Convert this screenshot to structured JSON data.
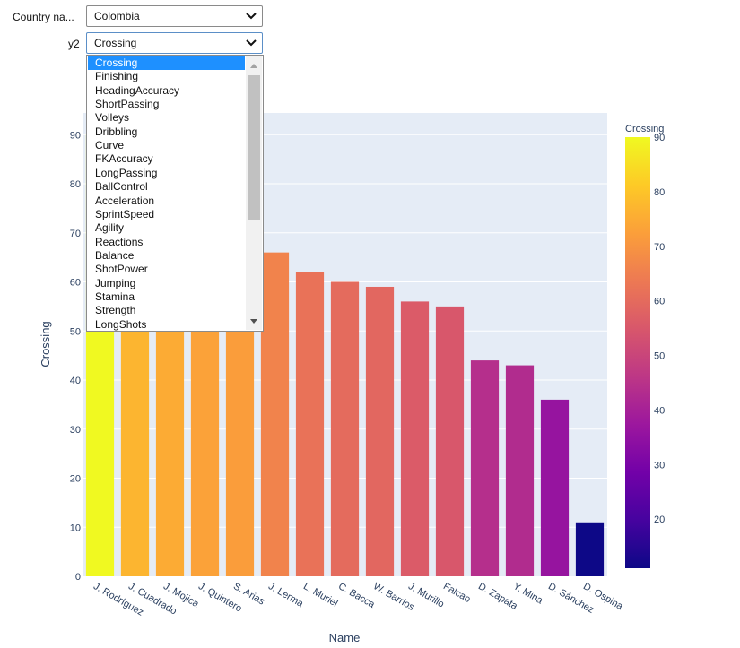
{
  "controls": {
    "country": {
      "label": "Country na...",
      "value": "Colombia"
    },
    "y2": {
      "label": "y2",
      "value": "Crossing",
      "options_visible": [
        "Crossing",
        "Finishing",
        "HeadingAccuracy",
        "ShortPassing",
        "Volleys",
        "Dribbling",
        "Curve",
        "FKAccuracy",
        "LongPassing",
        "BallControl",
        "Acceleration",
        "SprintSpeed",
        "Agility",
        "Reactions",
        "Balance",
        "ShotPower",
        "Jumping",
        "Stamina",
        "Strength",
        "LongShots"
      ],
      "selected_index": 0
    }
  },
  "chart_data": {
    "type": "bar",
    "xlabel": "Name",
    "ylabel": "Crossing",
    "categories": [
      "J. Rodríguez",
      "J. Cuadrado",
      "J. Mojica",
      "J. Quintero",
      "S. Arias",
      "J. Lerma",
      "L. Muriel",
      "C. Bacca",
      "W. Barrios",
      "J. Murillo",
      "Falcao",
      "D. Zapata",
      "Y. Mina",
      "D. Sánchez",
      "D. Ospina"
    ],
    "values": [
      90,
      77,
      75,
      73,
      72,
      66,
      62,
      60,
      59,
      56,
      55,
      44,
      43,
      36,
      11
    ],
    "ylim": [
      0,
      95
    ],
    "yticks": [
      0,
      10,
      20,
      30,
      40,
      50,
      60,
      70,
      80,
      90
    ],
    "colorscale": "plasma",
    "colorbar": {
      "title": "Crossing",
      "range": [
        11,
        90
      ],
      "ticks": [
        20,
        30,
        40,
        50,
        60,
        70,
        80,
        90
      ]
    },
    "background": "#e5ecf6",
    "grid": true
  }
}
